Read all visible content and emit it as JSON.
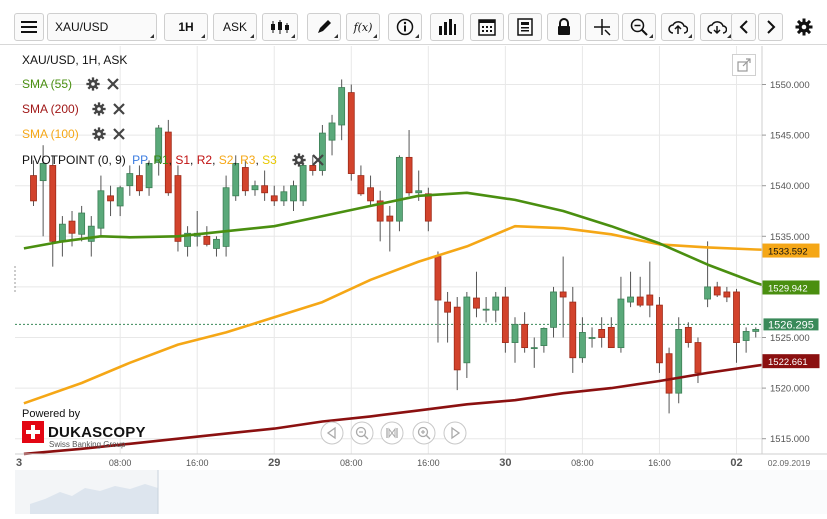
{
  "toolbar": {
    "instrument": "XAU/USD",
    "period": "1H",
    "side": "ASK",
    "function_label": "f(x)"
  },
  "chart_header": {
    "title": "XAU/USD, 1H, ASK"
  },
  "indicators": [
    {
      "label": "SMA (55)",
      "color": "#4a8f10"
    },
    {
      "label": "SMA (200)",
      "color": "#a01818"
    },
    {
      "label": "SMA (100)",
      "color": "#f5a716"
    }
  ],
  "pivot": {
    "label": "PIVOTPOINT (0, 9)",
    "levels": [
      {
        "label": "PP",
        "color": "#3a7be0"
      },
      {
        "label": "R1",
        "color": "#3a8a10"
      },
      {
        "label": "S1",
        "color": "#c01010"
      },
      {
        "label": "R2",
        "color": "#c01010"
      },
      {
        "label": "S2",
        "color": "#f5a716"
      },
      {
        "label": "R3",
        "color": "#f5a716"
      },
      {
        "label": "S3",
        "color": "#e8c800"
      }
    ]
  },
  "branding": {
    "powered_by": "Powered by",
    "brand": "DUKASCOPY",
    "tagline": "Swiss Banking Group"
  },
  "chart_data": {
    "type": "candlestick",
    "y_ticks": [
      "1550.000",
      "1545.000",
      "1540.000",
      "1535.000",
      "1530.000",
      "1525.000",
      "1520.000",
      "1515.000"
    ],
    "ylim": [
      1513.5,
      1552.5
    ],
    "x_labels": [
      {
        "i": -1,
        "label": "3",
        "bold": true
      },
      {
        "i": 9,
        "label": "08:00",
        "bold": false
      },
      {
        "i": 17,
        "label": "16:00",
        "bold": false
      },
      {
        "i": 25,
        "label": "29",
        "bold": true
      },
      {
        "i": 33,
        "label": "08:00",
        "bold": false
      },
      {
        "i": 41,
        "label": "16:00",
        "bold": false
      },
      {
        "i": 49,
        "label": "30",
        "bold": true
      },
      {
        "i": 57,
        "label": "08:00",
        "bold": false
      },
      {
        "i": 65,
        "label": "16:00",
        "bold": false
      },
      {
        "i": 73,
        "label": "02",
        "bold": true
      }
    ],
    "date_label": "02.09.2019",
    "candles": [
      {
        "o": 1541.0,
        "h": 1542.5,
        "l": 1538.0,
        "c": 1538.5
      },
      {
        "o": 1540.5,
        "h": 1544.0,
        "l": 1535.0,
        "c": 1542.2
      },
      {
        "o": 1542.0,
        "h": 1543.0,
        "l": 1532.0,
        "c": 1534.5
      },
      {
        "o": 1534.5,
        "h": 1537.0,
        "l": 1533.0,
        "c": 1536.2
      },
      {
        "o": 1536.5,
        "h": 1537.5,
        "l": 1534.0,
        "c": 1535.3
      },
      {
        "o": 1535.2,
        "h": 1538.0,
        "l": 1534.5,
        "c": 1537.3
      },
      {
        "o": 1534.5,
        "h": 1537.0,
        "l": 1533.0,
        "c": 1536.0
      },
      {
        "o": 1535.8,
        "h": 1541.0,
        "l": 1535.0,
        "c": 1539.5
      },
      {
        "o": 1539.0,
        "h": 1540.0,
        "l": 1537.0,
        "c": 1538.5
      },
      {
        "o": 1538.0,
        "h": 1540.0,
        "l": 1537.0,
        "c": 1539.8
      },
      {
        "o": 1540.0,
        "h": 1542.0,
        "l": 1539.0,
        "c": 1541.2
      },
      {
        "o": 1541.0,
        "h": 1542.0,
        "l": 1539.0,
        "c": 1539.5
      },
      {
        "o": 1539.8,
        "h": 1542.5,
        "l": 1539.0,
        "c": 1542.2
      },
      {
        "o": 1542.3,
        "h": 1546.0,
        "l": 1541.0,
        "c": 1545.7
      },
      {
        "o": 1545.3,
        "h": 1546.5,
        "l": 1539.0,
        "c": 1539.3
      },
      {
        "o": 1541.0,
        "h": 1542.0,
        "l": 1533.5,
        "c": 1534.5
      },
      {
        "o": 1534.0,
        "h": 1536.0,
        "l": 1533.0,
        "c": 1535.3
      },
      {
        "o": 1535.0,
        "h": 1537.5,
        "l": 1534.0,
        "c": 1535.3
      },
      {
        "o": 1535.0,
        "h": 1536.0,
        "l": 1534.0,
        "c": 1534.2
      },
      {
        "o": 1533.8,
        "h": 1535.0,
        "l": 1533.0,
        "c": 1534.7
      },
      {
        "o": 1534.0,
        "h": 1541.0,
        "l": 1533.0,
        "c": 1539.8
      },
      {
        "o": 1539.0,
        "h": 1543.0,
        "l": 1538.5,
        "c": 1542.2
      },
      {
        "o": 1541.8,
        "h": 1542.5,
        "l": 1539.0,
        "c": 1539.5
      },
      {
        "o": 1539.6,
        "h": 1540.5,
        "l": 1539.0,
        "c": 1540.0
      },
      {
        "o": 1540.0,
        "h": 1541.5,
        "l": 1538.5,
        "c": 1539.3
      },
      {
        "o": 1539.0,
        "h": 1540.0,
        "l": 1538.0,
        "c": 1538.5
      },
      {
        "o": 1538.5,
        "h": 1540.0,
        "l": 1538.0,
        "c": 1539.4
      },
      {
        "o": 1538.5,
        "h": 1540.5,
        "l": 1537.5,
        "c": 1540.0
      },
      {
        "o": 1538.5,
        "h": 1542.5,
        "l": 1538.0,
        "c": 1542.0
      },
      {
        "o": 1542.0,
        "h": 1543.0,
        "l": 1541.0,
        "c": 1541.5
      },
      {
        "o": 1541.5,
        "h": 1546.0,
        "l": 1541.0,
        "c": 1545.2
      },
      {
        "o": 1544.5,
        "h": 1547.0,
        "l": 1543.0,
        "c": 1546.2
      },
      {
        "o": 1546.0,
        "h": 1550.5,
        "l": 1544.5,
        "c": 1549.7
      },
      {
        "o": 1549.2,
        "h": 1550.0,
        "l": 1540.5,
        "c": 1541.2
      },
      {
        "o": 1541.0,
        "h": 1542.0,
        "l": 1539.0,
        "c": 1539.2
      },
      {
        "o": 1539.8,
        "h": 1541.0,
        "l": 1538.0,
        "c": 1538.5
      },
      {
        "o": 1538.5,
        "h": 1539.5,
        "l": 1534.5,
        "c": 1536.5
      },
      {
        "o": 1537.0,
        "h": 1538.0,
        "l": 1533.5,
        "c": 1536.5
      },
      {
        "o": 1536.5,
        "h": 1543.0,
        "l": 1535.5,
        "c": 1542.8
      },
      {
        "o": 1542.8,
        "h": 1545.5,
        "l": 1539.0,
        "c": 1539.3
      },
      {
        "o": 1539.3,
        "h": 1541.5,
        "l": 1538.5,
        "c": 1539.5
      },
      {
        "o": 1539.2,
        "h": 1539.8,
        "l": 1535.5,
        "c": 1536.5
      },
      {
        "o": 1533.0,
        "h": 1533.5,
        "l": 1524.5,
        "c": 1528.7
      },
      {
        "o": 1528.5,
        "h": 1529.5,
        "l": 1524.5,
        "c": 1527.5
      },
      {
        "o": 1528.0,
        "h": 1529.0,
        "l": 1519.8,
        "c": 1521.8
      },
      {
        "o": 1522.5,
        "h": 1529.5,
        "l": 1521.0,
        "c": 1529.0
      },
      {
        "o": 1528.9,
        "h": 1531.5,
        "l": 1527.0,
        "c": 1527.9
      },
      {
        "o": 1527.8,
        "h": 1529.0,
        "l": 1526.5,
        "c": 1527.8
      },
      {
        "o": 1527.7,
        "h": 1529.5,
        "l": 1526.5,
        "c": 1529.0
      },
      {
        "o": 1529.0,
        "h": 1530.0,
        "l": 1523.5,
        "c": 1524.5
      },
      {
        "o": 1524.5,
        "h": 1527.0,
        "l": 1522.5,
        "c": 1526.3
      },
      {
        "o": 1526.3,
        "h": 1527.5,
        "l": 1523.5,
        "c": 1524.0
      },
      {
        "o": 1524.0,
        "h": 1525.0,
        "l": 1522.0,
        "c": 1524.0
      },
      {
        "o": 1524.2,
        "h": 1526.0,
        "l": 1523.5,
        "c": 1525.9
      },
      {
        "o": 1526.0,
        "h": 1530.0,
        "l": 1525.0,
        "c": 1529.5
      },
      {
        "o": 1529.5,
        "h": 1533.0,
        "l": 1525.0,
        "c": 1529.0
      },
      {
        "o": 1528.5,
        "h": 1530.0,
        "l": 1521.5,
        "c": 1523.0
      },
      {
        "o": 1523.0,
        "h": 1527.0,
        "l": 1522.5,
        "c": 1525.5
      },
      {
        "o": 1525.0,
        "h": 1526.0,
        "l": 1524.0,
        "c": 1525.0
      },
      {
        "o": 1525.8,
        "h": 1527.0,
        "l": 1524.0,
        "c": 1525.0
      },
      {
        "o": 1526.0,
        "h": 1527.0,
        "l": 1524.0,
        "c": 1524.0
      },
      {
        "o": 1524.0,
        "h": 1531.0,
        "l": 1523.5,
        "c": 1528.8
      },
      {
        "o": 1528.5,
        "h": 1531.5,
        "l": 1528.0,
        "c": 1529.0
      },
      {
        "o": 1529.0,
        "h": 1531.0,
        "l": 1528.0,
        "c": 1528.2
      },
      {
        "o": 1529.2,
        "h": 1532.5,
        "l": 1527.0,
        "c": 1528.2
      },
      {
        "o": 1528.2,
        "h": 1529.0,
        "l": 1521.5,
        "c": 1522.5
      },
      {
        "o": 1523.4,
        "h": 1524.0,
        "l": 1517.5,
        "c": 1519.5
      },
      {
        "o": 1519.5,
        "h": 1527.0,
        "l": 1518.5,
        "c": 1525.8
      },
      {
        "o": 1526.0,
        "h": 1526.5,
        "l": 1524.0,
        "c": 1524.5
      },
      {
        "o": 1524.5,
        "h": 1525.0,
        "l": 1520.5,
        "c": 1521.5
      },
      {
        "o": 1528.8,
        "h": 1534.5,
        "l": 1528.0,
        "c": 1530.0
      },
      {
        "o": 1530.0,
        "h": 1530.5,
        "l": 1529.0,
        "c": 1529.2
      },
      {
        "o": 1529.5,
        "h": 1530.0,
        "l": 1528.5,
        "c": 1529.0
      },
      {
        "o": 1529.5,
        "h": 1529.8,
        "l": 1522.5,
        "c": 1524.5
      },
      {
        "o": 1524.7,
        "h": 1526.0,
        "l": 1523.5,
        "c": 1525.6
      },
      {
        "o": 1525.6,
        "h": 1526.0,
        "l": 1525.0,
        "c": 1525.8
      },
      {
        "o": 1526.0,
        "h": 1526.5,
        "l": 1525.5,
        "c": 1525.8
      }
    ],
    "sma55": [
      [
        -1,
        1533.8
      ],
      [
        3,
        1534.5
      ],
      [
        7,
        1535.0
      ],
      [
        10,
        1534.9
      ],
      [
        15,
        1535.0
      ],
      [
        20,
        1535.5
      ],
      [
        25,
        1536.0
      ],
      [
        30,
        1537.0
      ],
      [
        35,
        1538.0
      ],
      [
        40,
        1539.0
      ],
      [
        45,
        1539.3
      ],
      [
        50,
        1538.6
      ],
      [
        55,
        1537.5
      ],
      [
        60,
        1536.0
      ],
      [
        65,
        1534.3
      ],
      [
        70,
        1532.2
      ],
      [
        75,
        1530.4
      ],
      [
        78,
        1529.5
      ]
    ],
    "sma100": [
      [
        -1,
        1518.5
      ],
      [
        5,
        1520.5
      ],
      [
        10,
        1522.5
      ],
      [
        15,
        1524.3
      ],
      [
        20,
        1525.5
      ],
      [
        25,
        1527.0
      ],
      [
        30,
        1528.5
      ],
      [
        35,
        1530.7
      ],
      [
        40,
        1532.5
      ],
      [
        45,
        1534.0
      ],
      [
        50,
        1536.0
      ],
      [
        55,
        1535.8
      ],
      [
        60,
        1535.2
      ],
      [
        65,
        1534.2
      ],
      [
        70,
        1533.9
      ],
      [
        75,
        1533.7
      ],
      [
        78,
        1533.6
      ]
    ],
    "sma200": [
      [
        -1,
        1513.5
      ],
      [
        5,
        1514.0
      ],
      [
        10,
        1514.5
      ],
      [
        15,
        1515.0
      ],
      [
        20,
        1515.5
      ],
      [
        25,
        1516.0
      ],
      [
        30,
        1516.7
      ],
      [
        35,
        1517.2
      ],
      [
        40,
        1517.8
      ],
      [
        45,
        1518.4
      ],
      [
        50,
        1518.8
      ],
      [
        55,
        1519.5
      ],
      [
        60,
        1520.0
      ],
      [
        65,
        1520.7
      ],
      [
        70,
        1521.5
      ],
      [
        75,
        1522.2
      ],
      [
        78,
        1522.6
      ]
    ],
    "price_tags": [
      {
        "value": 1533.592,
        "label": "1533.592",
        "kind": "sma100",
        "bg": "#f5a716",
        "fg": "#111111"
      },
      {
        "value": 1529.942,
        "label": "1529.942",
        "kind": "sma55",
        "bg": "#4a8f10",
        "fg": "#ffffff"
      },
      {
        "value": 1526.295,
        "label": "1526.295",
        "kind": "current",
        "bg": "#3a8a5a",
        "fg": "#ffffff"
      },
      {
        "value": 1522.661,
        "label": "1522.661",
        "kind": "sma200",
        "bg": "#8b1010",
        "fg": "#ffffff"
      }
    ],
    "current_price": 1526.295,
    "colors": {
      "up": "#5aa97a",
      "down": "#d2432c",
      "up_border": "#3d7f56",
      "down_border": "#9e2a18",
      "grid": "#e8e8e8",
      "sma55": "#4a8f10",
      "sma100": "#f5a716",
      "sma200": "#8b1010"
    }
  }
}
